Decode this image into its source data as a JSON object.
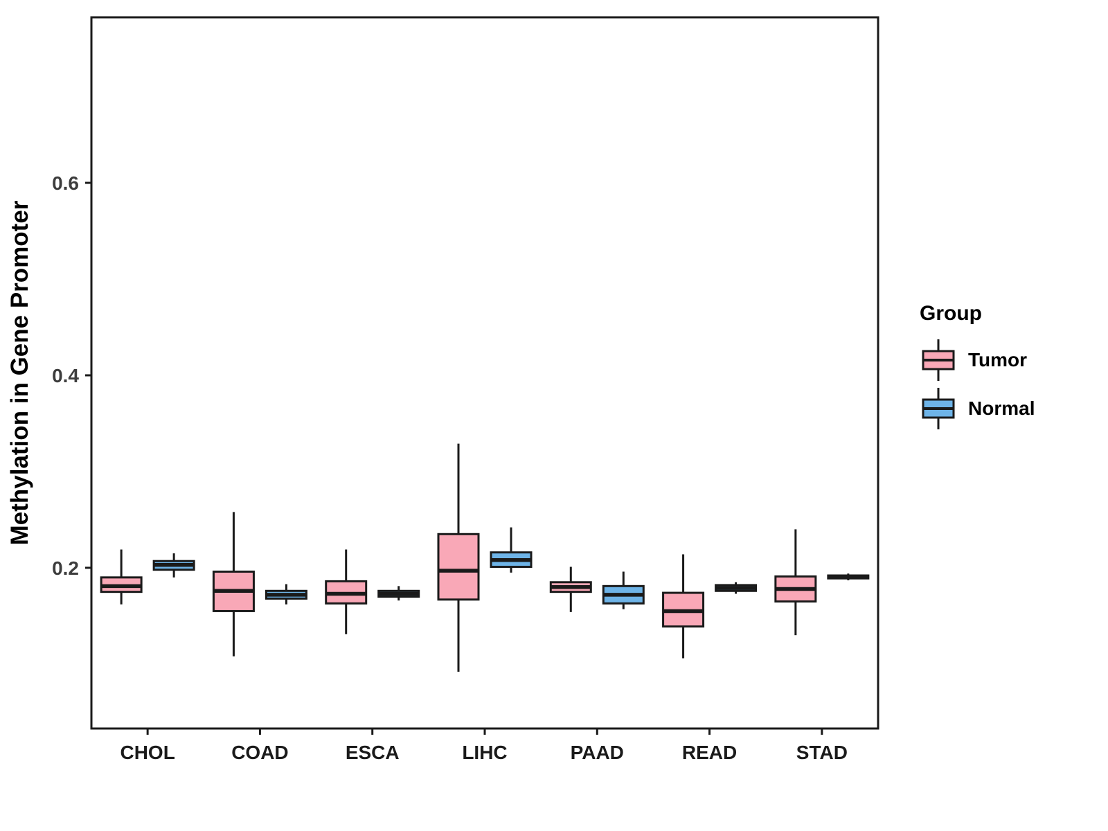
{
  "chart_data": {
    "type": "boxplot",
    "title": "",
    "xlabel": "",
    "ylabel": "Methylation in Gene Promoter",
    "categories": [
      "CHOL",
      "COAD",
      "ESCA",
      "LIHC",
      "PAAD",
      "READ",
      "STAD"
    ],
    "yticks": [
      "0.2",
      "0.4",
      "0.6"
    ],
    "ytick_values": [
      0.2,
      0.4,
      0.6
    ],
    "ylim": [
      0.033,
      0.772
    ],
    "grid": false,
    "panel_border": true,
    "legend": {
      "title": "Group",
      "position": "right"
    },
    "groups": [
      {
        "name": "Tumor",
        "fill": "#F9A8B7"
      },
      {
        "name": "Normal",
        "fill": "#6EB4E8"
      }
    ],
    "stroke_color": "#1a1a1a",
    "series": [
      {
        "name": "Tumor",
        "values": [
          {
            "category": "CHOL",
            "whislo": 0.162,
            "q1": 0.175,
            "med": 0.181,
            "q3": 0.19,
            "whishi": 0.219
          },
          {
            "category": "COAD",
            "whislo": 0.108,
            "q1": 0.155,
            "med": 0.176,
            "q3": 0.196,
            "whishi": 0.258
          },
          {
            "category": "ESCA",
            "whislo": 0.131,
            "q1": 0.163,
            "med": 0.173,
            "q3": 0.186,
            "whishi": 0.219
          },
          {
            "category": "LIHC",
            "whislo": 0.092,
            "q1": 0.167,
            "med": 0.197,
            "q3": 0.235,
            "whishi": 0.329
          },
          {
            "category": "PAAD",
            "whislo": 0.154,
            "q1": 0.175,
            "med": 0.18,
            "q3": 0.185,
            "whishi": 0.201
          },
          {
            "category": "READ",
            "whislo": 0.106,
            "q1": 0.139,
            "med": 0.155,
            "q3": 0.174,
            "whishi": 0.214
          },
          {
            "category": "STAD",
            "whislo": 0.13,
            "q1": 0.165,
            "med": 0.178,
            "q3": 0.191,
            "whishi": 0.24
          }
        ]
      },
      {
        "name": "Normal",
        "values": [
          {
            "category": "CHOL",
            "whislo": 0.19,
            "q1": 0.198,
            "med": 0.203,
            "q3": 0.207,
            "whishi": 0.215
          },
          {
            "category": "COAD",
            "whislo": 0.162,
            "q1": 0.168,
            "med": 0.172,
            "q3": 0.176,
            "whishi": 0.183
          },
          {
            "category": "ESCA",
            "whislo": 0.166,
            "q1": 0.17,
            "med": 0.173,
            "q3": 0.176,
            "whishi": 0.181
          },
          {
            "category": "LIHC",
            "whislo": 0.195,
            "q1": 0.201,
            "med": 0.208,
            "q3": 0.216,
            "whishi": 0.242
          },
          {
            "category": "PAAD",
            "whislo": 0.157,
            "q1": 0.163,
            "med": 0.172,
            "q3": 0.181,
            "whishi": 0.196
          },
          {
            "category": "READ",
            "whislo": 0.173,
            "q1": 0.176,
            "med": 0.179,
            "q3": 0.182,
            "whishi": 0.185
          },
          {
            "category": "STAD",
            "whislo": 0.187,
            "q1": 0.189,
            "med": 0.191,
            "q3": 0.192,
            "whishi": 0.194
          }
        ]
      }
    ]
  }
}
